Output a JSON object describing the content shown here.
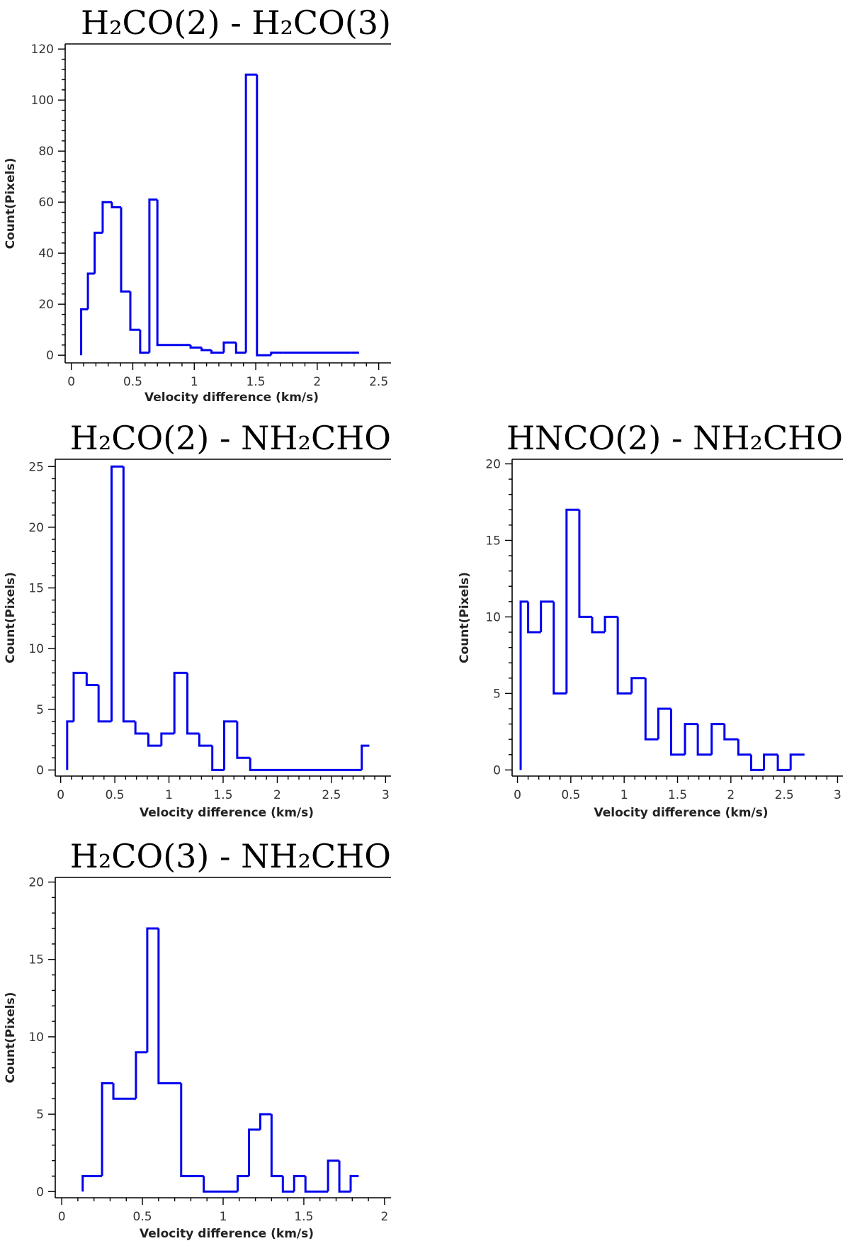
{
  "figure": {
    "panels": [
      {
        "title": "H₂CO(2) - H₂CO(3)",
        "subtitle": "",
        "xlabel": "Velocity difference (km/s)",
        "ylabel": "Count(Pixels)"
      },
      {
        "title": "H₂CO(2) - NH₂CHO",
        "subtitle": "",
        "xlabel": "Velocity difference (km/s)",
        "ylabel": "Count(Pixels)"
      },
      {
        "title": "HNCO(2) - NH₂CHO",
        "subtitle": "",
        "xlabel": "Velocity difference (km/s)",
        "ylabel": "Count(Pixels)"
      },
      {
        "title": "H₂CO(3) - NH₂CHO",
        "subtitle": "",
        "xlabel": "Velocity difference (km/s)",
        "ylabel": "Count(Pixels)"
      }
    ],
    "color": "#0000ee"
  },
  "chart_data": [
    {
      "type": "bar",
      "subtype": "step-histogram",
      "title": "H₂CO(2) - H₂CO(3)",
      "xlabel": "Velocity difference (km/s)",
      "ylabel": "Count(Pixels)",
      "xlim": [
        -0.05,
        2.6
      ],
      "ylim": [
        -3,
        122
      ],
      "xticks": [
        0,
        0.5,
        1,
        1.5,
        2,
        2.5
      ],
      "xtick_labels": [
        "0",
        "0.5",
        "1",
        "1.5",
        "2",
        "2.5"
      ],
      "yticks": [
        0,
        20,
        40,
        60,
        80,
        100,
        120
      ],
      "ytick_labels": [
        "0",
        "20",
        "40",
        "60",
        "80",
        "100",
        "120"
      ],
      "series": [
        {
          "edges": [
            0.08,
            0.135,
            0.19,
            0.255,
            0.33,
            0.405,
            0.48,
            0.56,
            0.635,
            0.7,
            0.97,
            1.06,
            1.14,
            1.24,
            1.34,
            1.42,
            1.51,
            1.625,
            1.72,
            2.27,
            2.34
          ],
          "counts": [
            18,
            32,
            48,
            60,
            58,
            25,
            10,
            1,
            61,
            4,
            3,
            2,
            1,
            5,
            1,
            110,
            0,
            1,
            1,
            1
          ]
        }
      ],
      "grid": false
    },
    {
      "type": "bar",
      "subtype": "step-histogram",
      "title": "H₂CO(2) - NH₂CHO",
      "xlabel": "Velocity difference (km/s)",
      "ylabel": "Count(Pixels)",
      "xlim": [
        -0.05,
        3.05
      ],
      "ylim": [
        -0.5,
        25.6
      ],
      "xticks": [
        0,
        0.5,
        1,
        1.5,
        2,
        2.5,
        3
      ],
      "xtick_labels": [
        "0",
        "0.5",
        "1",
        "1.5",
        "2",
        "2.5",
        "3"
      ],
      "yticks": [
        0,
        5,
        10,
        15,
        20,
        25
      ],
      "ytick_labels": [
        "0",
        "5",
        "10",
        "15",
        "20",
        "25"
      ],
      "series": [
        {
          "edges": [
            0.06,
            0.12,
            0.24,
            0.35,
            0.47,
            0.58,
            0.69,
            0.81,
            0.93,
            1.05,
            1.17,
            1.28,
            1.4,
            1.51,
            1.63,
            1.75,
            2.78,
            2.85
          ],
          "counts": [
            4,
            8,
            7,
            4,
            25,
            4,
            3,
            2,
            3,
            8,
            3,
            2,
            0,
            4,
            1,
            0,
            2
          ]
        }
      ],
      "grid": false
    },
    {
      "type": "bar",
      "subtype": "step-histogram",
      "title": "HNCO(2) - NH₂CHO",
      "xlabel": "Velocity difference (km/s)",
      "ylabel": "Count(Pixels)",
      "xlim": [
        -0.05,
        3.05
      ],
      "ylim": [
        -0.4,
        20.3
      ],
      "xticks": [
        0,
        0.5,
        1,
        1.5,
        2,
        2.5,
        3
      ],
      "xtick_labels": [
        "0",
        "0.5",
        "1",
        "1.5",
        "2",
        "2.5",
        "3"
      ],
      "yticks": [
        0,
        5,
        10,
        15,
        20
      ],
      "ytick_labels": [
        "0",
        "5",
        "10",
        "15",
        "20"
      ],
      "series": [
        {
          "edges": [
            0.03,
            0.1,
            0.22,
            0.34,
            0.46,
            0.58,
            0.7,
            0.82,
            0.94,
            1.07,
            1.2,
            1.32,
            1.44,
            1.57,
            1.69,
            1.82,
            1.94,
            2.07,
            2.19,
            2.31,
            2.44,
            2.56,
            2.69
          ],
          "counts": [
            11,
            9,
            11,
            5,
            17,
            10,
            9,
            10,
            5,
            6,
            2,
            4,
            1,
            3,
            1,
            3,
            2,
            1,
            0,
            1,
            0,
            1
          ]
        }
      ],
      "grid": false
    },
    {
      "type": "bar",
      "subtype": "step-histogram",
      "title": "H₂CO(3) - NH₂CHO",
      "xlabel": "Velocity difference (km/s)",
      "ylabel": "Count(Pixels)",
      "xlim": [
        -0.04,
        2.04
      ],
      "ylim": [
        -0.4,
        20.3
      ],
      "xticks": [
        0,
        0.5,
        1,
        1.5,
        2
      ],
      "xtick_labels": [
        "0",
        "0.5",
        "1",
        "1.5",
        "2"
      ],
      "yticks": [
        0,
        5,
        10,
        15,
        20
      ],
      "ytick_labels": [
        "0",
        "5",
        "10",
        "15",
        "20"
      ],
      "series": [
        {
          "edges": [
            0.13,
            0.25,
            0.32,
            0.46,
            0.53,
            0.6,
            0.74,
            0.88,
            1.09,
            1.16,
            1.23,
            1.3,
            1.37,
            1.44,
            1.51,
            1.65,
            1.72,
            1.79,
            1.84
          ],
          "counts": [
            1,
            7,
            6,
            9,
            17,
            7,
            1,
            0,
            1,
            4,
            5,
            1,
            0,
            1,
            0,
            2,
            0,
            1
          ]
        }
      ],
      "grid": false
    }
  ]
}
